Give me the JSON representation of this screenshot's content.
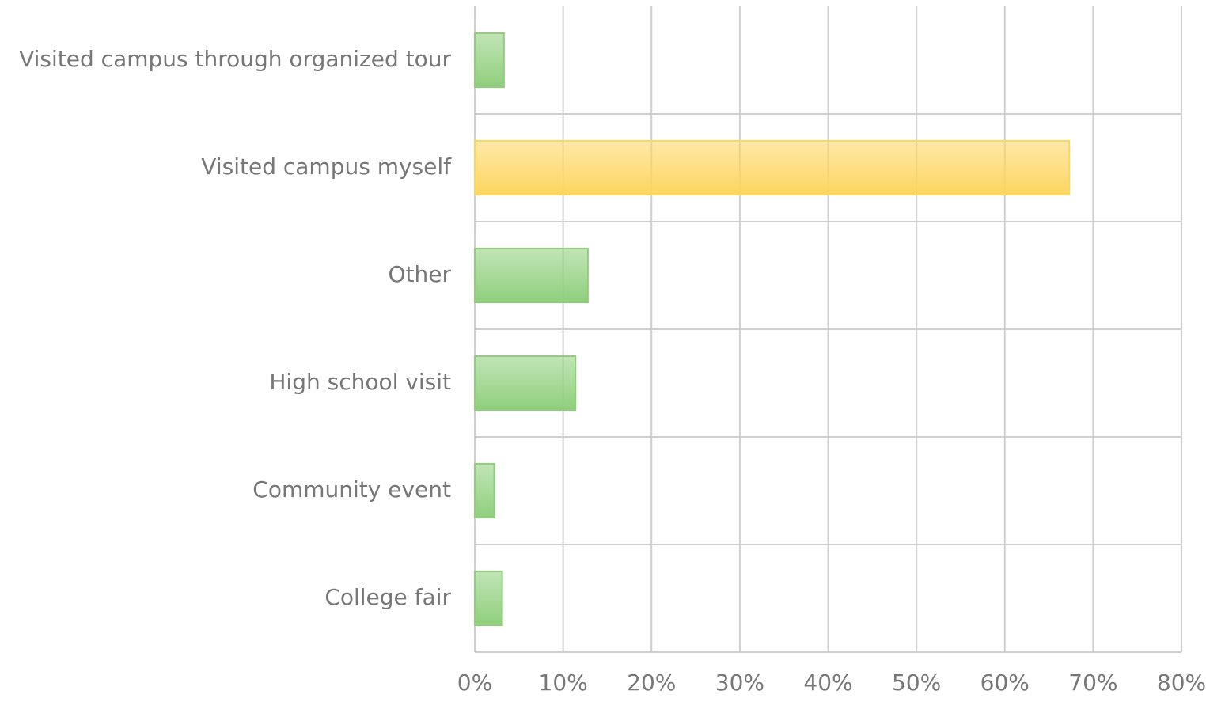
{
  "chart_data": {
    "type": "bar",
    "orientation": "horizontal",
    "categories": [
      "Visited campus through organized tour",
      "Visited campus myself",
      "Other",
      "High school visit",
      "Community event",
      "College fair"
    ],
    "values": [
      3.3,
      67.3,
      12.8,
      11.4,
      2.2,
      3.1
    ],
    "colors": [
      "#8fcf7c",
      "#fdd660",
      "#8fcf7c",
      "#8fcf7c",
      "#8fcf7c",
      "#8fcf7c"
    ],
    "xlim": [
      0,
      80
    ],
    "xticks": [
      {
        "value": 0,
        "label": "0%"
      },
      {
        "value": 10,
        "label": "10%"
      },
      {
        "value": 20,
        "label": "20%"
      },
      {
        "value": 30,
        "label": "30%"
      },
      {
        "value": 40,
        "label": "40%"
      },
      {
        "value": 50,
        "label": "50%"
      },
      {
        "value": 60,
        "label": "60%"
      },
      {
        "value": 70,
        "label": "70%"
      },
      {
        "value": 80,
        "label": "80%"
      }
    ],
    "grid": true
  }
}
